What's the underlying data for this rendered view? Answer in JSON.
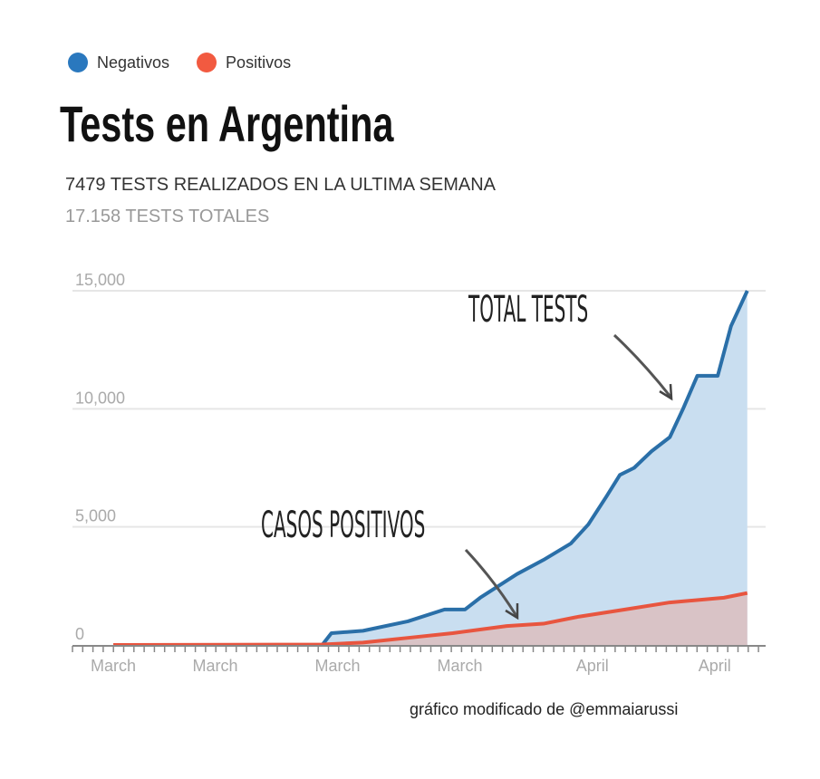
{
  "chart_data": {
    "type": "area",
    "title": "Tests en Argentina",
    "subtitle": [
      "7479 TESTS REALIZADOS EN LA ULTIMA SEMANA",
      "17.158 TESTS TOTALES"
    ],
    "xlabel": "",
    "ylabel": "",
    "ylim": [
      0,
      15000
    ],
    "xlim": [
      -4,
      64
    ],
    "grid": true,
    "legend_placement": "top-left",
    "y_ticks": [
      {
        "value": 0,
        "label": "0"
      },
      {
        "value": 5000,
        "label": "5,000"
      },
      {
        "value": 10000,
        "label": "10,000"
      },
      {
        "value": 15000,
        "label": "15,000"
      }
    ],
    "x_ticks": [
      {
        "value": 0,
        "label": "March"
      },
      {
        "value": 10,
        "label": "March"
      },
      {
        "value": 22,
        "label": "March"
      },
      {
        "value": 34,
        "label": "March"
      },
      {
        "value": 47,
        "label": "April"
      },
      {
        "value": 59,
        "label": "April"
      }
    ],
    "series": [
      {
        "name": "Negativos",
        "color": "#2a6fa8",
        "fill": "#c9def0",
        "points": [
          [
            0,
            0
          ],
          [
            20.5,
            0
          ],
          [
            21.4,
            500
          ],
          [
            24.5,
            600
          ],
          [
            28.9,
            1000
          ],
          [
            32.5,
            1500
          ],
          [
            34.5,
            1500
          ],
          [
            36,
            2000
          ],
          [
            39.6,
            3000
          ],
          [
            42.2,
            3600
          ],
          [
            44.9,
            4300
          ],
          [
            46.6,
            5100
          ],
          [
            48.4,
            6300
          ],
          [
            49.7,
            7200
          ],
          [
            51.1,
            7500
          ],
          [
            52.8,
            8200
          ],
          [
            54.6,
            8800
          ],
          [
            55.9,
            10000
          ],
          [
            57.3,
            11400
          ],
          [
            59.3,
            11400
          ],
          [
            60.6,
            13500
          ],
          [
            62.2,
            15000
          ]
        ]
      },
      {
        "name": "Positivos",
        "color": "#e8553f",
        "fill": "#d9c3c6",
        "points": [
          [
            0,
            0
          ],
          [
            20.5,
            20
          ],
          [
            24.5,
            100
          ],
          [
            28.9,
            300
          ],
          [
            33.3,
            500
          ],
          [
            38.6,
            800
          ],
          [
            42.2,
            900
          ],
          [
            45.7,
            1200
          ],
          [
            50.2,
            1500
          ],
          [
            54.6,
            1800
          ],
          [
            59.9,
            2000
          ],
          [
            62.2,
            2200
          ]
        ]
      }
    ],
    "annotations": [
      {
        "text": "TOTAL TESTS"
      },
      {
        "text": "CASOS POSITIVOS"
      }
    ]
  },
  "legend": [
    {
      "label": "Negativos",
      "color": "#2a78be"
    },
    {
      "label": "Positivos",
      "color": "#f25a40"
    }
  ],
  "credit": "gráfico modificado de @emmaiarussi"
}
